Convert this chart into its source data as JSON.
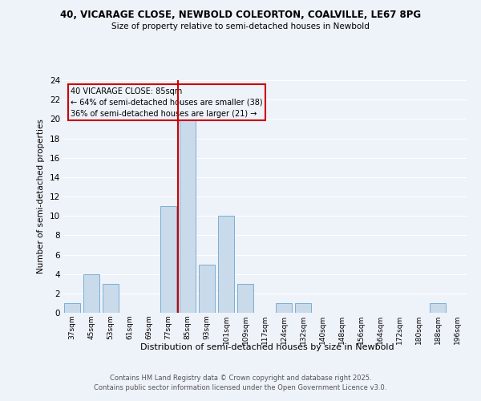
{
  "title1": "40, VICARAGE CLOSE, NEWBOLD COLEORTON, COALVILLE, LE67 8PG",
  "title2": "Size of property relative to semi-detached houses in Newbold",
  "xlabel": "Distribution of semi-detached houses by size in Newbold",
  "ylabel": "Number of semi-detached properties",
  "categories": [
    "37sqm",
    "45sqm",
    "53sqm",
    "61sqm",
    "69sqm",
    "77sqm",
    "85sqm",
    "93sqm",
    "101sqm",
    "109sqm",
    "117sqm",
    "124sqm",
    "132sqm",
    "140sqm",
    "148sqm",
    "156sqm",
    "164sqm",
    "172sqm",
    "180sqm",
    "188sqm",
    "196sqm"
  ],
  "values": [
    1,
    4,
    3,
    0,
    0,
    11,
    20,
    5,
    10,
    3,
    0,
    1,
    1,
    0,
    0,
    0,
    0,
    0,
    0,
    1,
    0
  ],
  "bar_color": "#c9daea",
  "bar_edge_color": "#7bafd4",
  "ylim": [
    0,
    24
  ],
  "yticks": [
    0,
    2,
    4,
    6,
    8,
    10,
    12,
    14,
    16,
    18,
    20,
    22,
    24
  ],
  "annotation_title": "40 VICARAGE CLOSE: 85sqm",
  "annotation_line1": "← 64% of semi-detached houses are smaller (38)",
  "annotation_line2": "36% of semi-detached houses are larger (21) →",
  "vline_color": "#cc0000",
  "vline_x": 5.5,
  "box_color": "#cc0000",
  "footer1": "Contains HM Land Registry data © Crown copyright and database right 2025.",
  "footer2": "Contains public sector information licensed under the Open Government Licence v3.0.",
  "bg_color": "#eef2f9",
  "grid_color": "#ffffff"
}
